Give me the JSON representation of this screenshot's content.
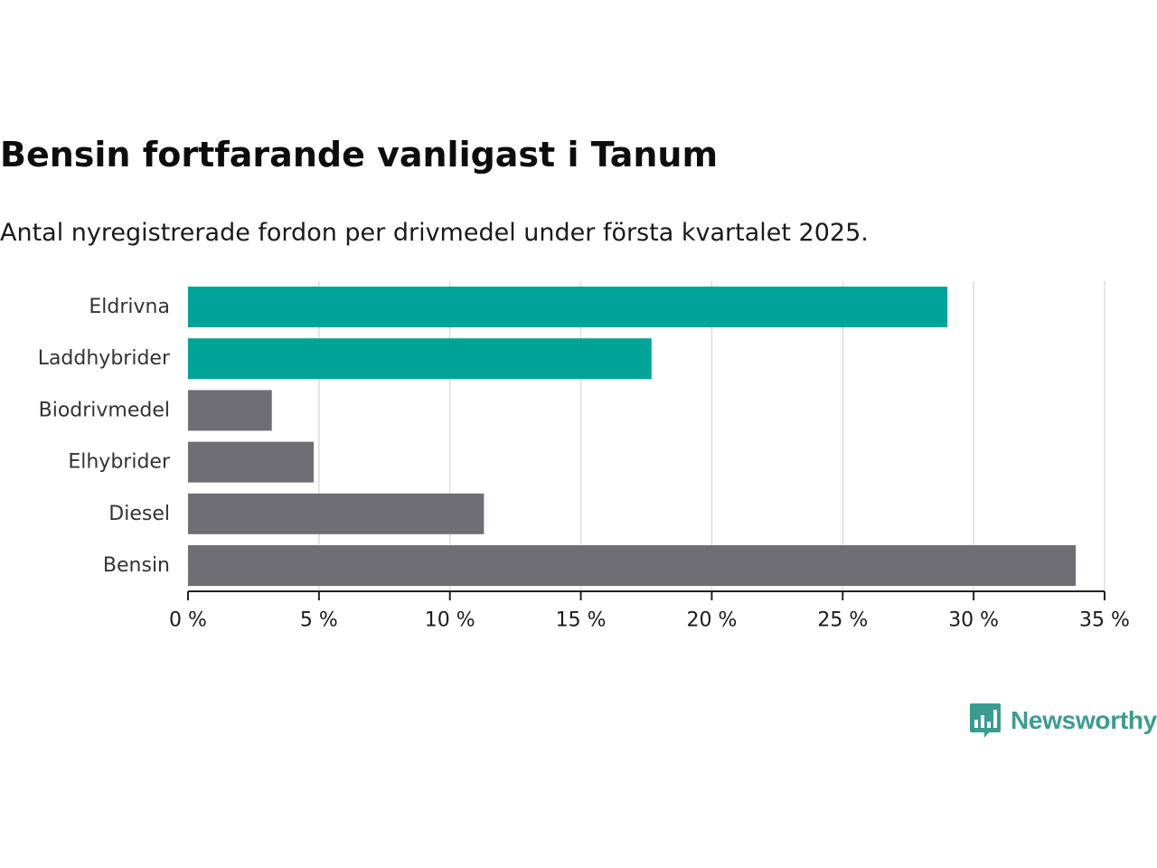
{
  "title": "Bensin fortfarande vanligast i Tanum",
  "subtitle": "Antal nyregistrerade fordon per drivmedel under första kvartalet 2025.",
  "brand": {
    "name": "Newsworthy",
    "icon": "bar-chart-bubble-icon",
    "color": "#3a9c91"
  },
  "colors": {
    "highlight": "#00a398",
    "default": "#6f6e74",
    "grid": "#dddddd",
    "axis": "#222222"
  },
  "chart_data": {
    "type": "bar",
    "orientation": "horizontal",
    "categories": [
      "Eldrivna",
      "Laddhybrider",
      "Biodrivmedel",
      "Elhybrider",
      "Diesel",
      "Bensin"
    ],
    "values": [
      29.0,
      17.7,
      3.2,
      4.8,
      11.3,
      33.9
    ],
    "highlighted": [
      true,
      true,
      false,
      false,
      false,
      false
    ],
    "xlim": [
      0,
      35
    ],
    "xticks": [
      0,
      5,
      10,
      15,
      20,
      25,
      30,
      35
    ],
    "xtick_labels": [
      "0 %",
      "5 %",
      "10 %",
      "15 %",
      "20 %",
      "25 %",
      "30 %",
      "35 %"
    ],
    "grid": "vertical",
    "legend": "none"
  }
}
